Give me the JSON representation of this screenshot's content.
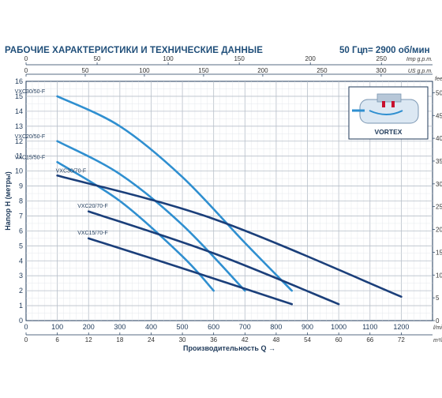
{
  "header": {
    "title": "РАБОЧИЕ ХАРАКТЕРИСТИКИ И ТЕХНИЧЕСКИЕ ДАННЫЕ",
    "frequency": "50 Гц",
    "speed": "n= 2900 об/мин"
  },
  "chart_data": {
    "type": "line",
    "xlabel": "Производительность Q",
    "ylabel": "Напор H (метры)",
    "xlim": [
      0,
      1300
    ],
    "ylim": [
      0,
      16
    ],
    "x_unit_bottom": "l/min",
    "x_ticks": [
      0,
      100,
      200,
      300,
      400,
      500,
      600,
      700,
      800,
      900,
      1000,
      1100,
      1200
    ],
    "y_ticks": [
      0,
      1,
      2,
      3,
      4,
      5,
      6,
      7,
      8,
      9,
      10,
      11,
      12,
      13,
      14,
      15,
      16
    ],
    "secondary_axes": {
      "top_imp": {
        "unit": "Imp g.p.m.",
        "ticks": [
          "0",
          "50",
          "100",
          "150",
          "200",
          "250"
        ],
        "values_lmin": [
          0,
          227.3,
          454.6,
          681.9,
          909.2,
          1136.5
        ]
      },
      "top_us": {
        "unit": "US g.p.m.",
        "ticks": [
          "0",
          "50",
          "100",
          "150",
          "200",
          "250",
          "300"
        ],
        "values_lmin": [
          0,
          189.3,
          378.5,
          567.8,
          757.1,
          946.4,
          1135.6
        ]
      },
      "bottom_m3h": {
        "unit": "m³/h",
        "ticks": [
          "0",
          "6",
          "12",
          "18",
          "24",
          "30",
          "36",
          "42",
          "48",
          "54",
          "60",
          "66",
          "72"
        ],
        "values_lmin": [
          0,
          100,
          200,
          300,
          400,
          500,
          600,
          700,
          800,
          900,
          1000,
          1100,
          1200
        ]
      },
      "right_feet": {
        "unit": "feet",
        "ticks": [
          "0",
          "5",
          "10",
          "15",
          "20",
          "25",
          "30",
          "35",
          "40",
          "45",
          "50"
        ],
        "values_m": [
          0,
          1.524,
          3.048,
          4.572,
          6.096,
          7.62,
          9.144,
          10.668,
          12.192,
          13.716,
          15.24
        ]
      }
    },
    "series": [
      {
        "name": "VXC30/50-F",
        "color": "#2f8fd0",
        "x": [
          100,
          300,
          500,
          700,
          850
        ],
        "y": [
          15.0,
          13.0,
          9.6,
          5.2,
          2.0
        ]
      },
      {
        "name": "VXC20/50-F",
        "color": "#2f8fd0",
        "x": [
          100,
          300,
          500,
          700
        ],
        "y": [
          12.0,
          9.8,
          6.4,
          2.0
        ]
      },
      {
        "name": "VXC15/50-F",
        "color": "#2f8fd0",
        "x": [
          100,
          300,
          500,
          600
        ],
        "y": [
          10.6,
          8.0,
          4.3,
          2.0
        ]
      },
      {
        "name": "VXC30/70-F",
        "color": "#1b3f7a",
        "x": [
          100,
          600,
          1200
        ],
        "y": [
          9.7,
          6.8,
          1.6
        ]
      },
      {
        "name": "VXC20/70-F",
        "color": "#1b3f7a",
        "x": [
          200,
          600,
          1000
        ],
        "y": [
          7.3,
          4.5,
          1.1
        ]
      },
      {
        "name": "VXC15/70-F",
        "color": "#1b3f7a",
        "x": [
          200,
          500,
          850
        ],
        "y": [
          5.5,
          3.5,
          1.1
        ]
      }
    ],
    "inset_label": "VORTEX",
    "grid": true
  }
}
